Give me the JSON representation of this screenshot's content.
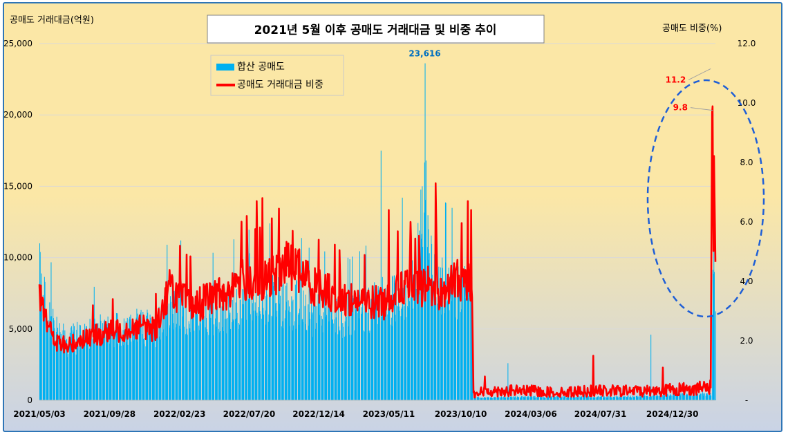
{
  "chart_data": {
    "type": "bar+line",
    "title": "2021년 5월 이후 공매도 거래대금 및 비중 추이",
    "y_left_label": "공매도 거래대금(억원)",
    "y_right_label": "공매도 비중(%)",
    "y_left_range": [
      0,
      25000
    ],
    "y_right_range": [
      0,
      12
    ],
    "y_left_ticks": [
      "0",
      "5,000",
      "10,000",
      "15,000",
      "20,000",
      "25,000"
    ],
    "y_right_ticks": [
      "-",
      "2.0",
      "4.0",
      "6.0",
      "8.0",
      "10.0",
      "12.0"
    ],
    "x_range": [
      "2021/05/03",
      "2025/03/31"
    ],
    "x_ticks": [
      "2021/05/03",
      "2021/09/28",
      "2022/02/23",
      "2022/07/20",
      "2022/12/14",
      "2023/05/11",
      "2023/10/10",
      "2024/03/06",
      "2024/07/31",
      "2024/12/30"
    ],
    "legend_position": "top-left",
    "grid": true,
    "series": [
      {
        "name": "합산 공매도",
        "type": "bar",
        "axis": "left",
        "color": "#00b0f0",
        "points": [
          [
            "2021/05/03",
            8500
          ],
          [
            "2021/06/01",
            5000
          ],
          [
            "2021/07/01",
            4200
          ],
          [
            "2021/08/02",
            4500
          ],
          [
            "2021/09/01",
            4700
          ],
          [
            "2021/10/01",
            5200
          ],
          [
            "2021/11/01",
            5000
          ],
          [
            "2021/12/01",
            5300
          ],
          [
            "2022/01/03",
            5000
          ],
          [
            "2022/02/02",
            6500
          ],
          [
            "2022/03/02",
            6500
          ],
          [
            "2022/04/01",
            5800
          ],
          [
            "2022/05/02",
            6000
          ],
          [
            "2022/06/02",
            6300
          ],
          [
            "2022/07/01",
            6800
          ],
          [
            "2022/08/01",
            7000
          ],
          [
            "2022/09/01",
            7200
          ],
          [
            "2022/10/04",
            6800
          ],
          [
            "2022/11/01",
            6800
          ],
          [
            "2022/12/01",
            6000
          ],
          [
            "2023/01/02",
            6100
          ],
          [
            "2023/02/01",
            5700
          ],
          [
            "2023/03/02",
            5900
          ],
          [
            "2023/04/03",
            6500
          ],
          [
            "2023/05/02",
            7000
          ],
          [
            "2023/06/01",
            7300
          ],
          [
            "2023/07/03",
            8000
          ],
          [
            "2023/07/26",
            15000
          ],
          [
            "2023/08/01",
            10500
          ],
          [
            "2023/09/01",
            8100
          ],
          [
            "2023/10/04",
            7800
          ],
          [
            "2023/11/01",
            8000
          ],
          [
            "2023/11/03",
            7900
          ],
          [
            "2023/11/06",
            200
          ],
          [
            "2023/12/01",
            200
          ],
          [
            "2024/01/02",
            220
          ],
          [
            "2024/03/04",
            250
          ],
          [
            "2024/05/02",
            230
          ],
          [
            "2024/07/01",
            240
          ],
          [
            "2024/09/02",
            260
          ],
          [
            "2024/11/01",
            280
          ],
          [
            "2025/01/02",
            400
          ],
          [
            "2025/03/21",
            400
          ],
          [
            "2025/03/24",
            6500
          ],
          [
            "2025/03/27",
            11000
          ],
          [
            "2025/03/31",
            8000
          ]
        ],
        "spikes": [
          [
            "2023/07/26",
            23616
          ],
          [
            "2023/07/28",
            16800
          ],
          [
            "2023/04/24",
            17500
          ],
          [
            "2023/07/20",
            15000
          ],
          [
            "2023/06/08",
            14200
          ],
          [
            "2021/05/03",
            11000
          ],
          [
            "2022/01/27",
            10900
          ],
          [
            "2022/07/20",
            10300
          ],
          [
            "2024/11/14",
            4600
          ],
          [
            "2024/01/17",
            2600
          ],
          [
            "2025/03/28",
            9000
          ]
        ]
      },
      {
        "name": "공매도 거래대금 비중",
        "type": "line",
        "axis": "right",
        "color": "#ff0000",
        "points": [
          [
            "2021/05/03",
            3.8
          ],
          [
            "2021/06/01",
            2.0
          ],
          [
            "2021/07/01",
            1.8
          ],
          [
            "2021/08/02",
            2.1
          ],
          [
            "2021/09/01",
            2.2
          ],
          [
            "2021/10/01",
            2.3
          ],
          [
            "2021/11/01",
            2.4
          ],
          [
            "2021/12/01",
            2.5
          ],
          [
            "2022/01/03",
            2.4
          ],
          [
            "2022/02/02",
            3.8
          ],
          [
            "2022/03/02",
            3.4
          ],
          [
            "2022/04/01",
            3.2
          ],
          [
            "2022/05/02",
            3.5
          ],
          [
            "2022/06/02",
            3.6
          ],
          [
            "2022/07/01",
            4.1
          ],
          [
            "2022/08/01",
            3.9
          ],
          [
            "2022/09/01",
            4.1
          ],
          [
            "2022/10/04",
            4.6
          ],
          [
            "2022/11/01",
            4.4
          ],
          [
            "2022/12/01",
            3.9
          ],
          [
            "2023/01/02",
            3.7
          ],
          [
            "2023/02/01",
            3.4
          ],
          [
            "2023/03/02",
            3.4
          ],
          [
            "2023/04/03",
            3.3
          ],
          [
            "2023/05/02",
            3.3
          ],
          [
            "2023/06/01",
            3.9
          ],
          [
            "2023/07/03",
            3.7
          ],
          [
            "2023/08/01",
            3.9
          ],
          [
            "2023/09/01",
            3.6
          ],
          [
            "2023/10/04",
            4.1
          ],
          [
            "2023/11/03",
            4.0
          ],
          [
            "2023/11/06",
            0.2
          ],
          [
            "2023/12/01",
            0.3
          ],
          [
            "2024/01/02",
            0.3
          ],
          [
            "2024/03/04",
            0.3
          ],
          [
            "2024/05/02",
            0.25
          ],
          [
            "2024/07/01",
            0.3
          ],
          [
            "2024/09/02",
            0.3
          ],
          [
            "2024/11/01",
            0.3
          ],
          [
            "2025/01/02",
            0.35
          ],
          [
            "2025/03/21",
            0.4
          ],
          [
            "2025/03/24",
            11.2
          ],
          [
            "2025/03/26",
            7.0
          ],
          [
            "2025/03/27",
            6.0
          ],
          [
            "2025/03/28",
            9.8
          ],
          [
            "2025/03/31",
            4.4
          ]
        ],
        "spikes": [
          [
            "2021/05/03",
            3.9
          ],
          [
            "2022/02/24",
            5.2
          ],
          [
            "2022/07/15",
            6.2
          ],
          [
            "2022/08/05",
            6.7
          ],
          [
            "2022/08/17",
            6.8
          ],
          [
            "2022/10/20",
            5.7
          ],
          [
            "2022/12/14",
            5.4
          ],
          [
            "2023/05/11",
            6.4
          ],
          [
            "2023/06/26",
            6.0
          ],
          [
            "2023/08/18",
            7.3
          ],
          [
            "2023/10/25",
            6.7
          ],
          [
            "2023/11/01",
            6.4
          ],
          [
            "2024/07/16",
            1.5
          ],
          [
            "2024/12/10",
            1.1
          ],
          [
            "2023/11/30",
            0.8
          ]
        ]
      }
    ],
    "annotations": [
      {
        "text": "23,616",
        "x": "2023/07/26",
        "value": 23616,
        "axis": "left",
        "color": "#0070c0"
      },
      {
        "text": "11.2",
        "x": "2025/03/24",
        "value": 11.2,
        "axis": "right",
        "color": "#ff0000"
      },
      {
        "text": "9.8",
        "x": "2025/03/28",
        "value": 9.8,
        "axis": "right",
        "color": "#ff0000"
      }
    ]
  },
  "colors": {
    "border": "#2e75b6",
    "bg_top": "#fbe7a6",
    "bg_bottom": "#c9d3e6",
    "bar": "#00b0f0",
    "line": "#ff0000",
    "ellipse": "#1f5fd6",
    "label_blue": "#0070c0",
    "label_red": "#ff0000"
  }
}
